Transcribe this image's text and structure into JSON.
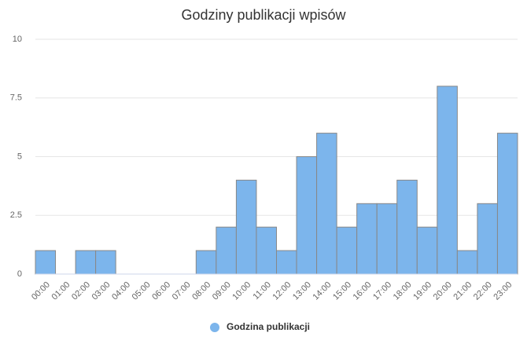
{
  "chart_data": {
    "type": "bar",
    "title": "Godziny publikacji wpisów",
    "categories": [
      "00:00",
      "01:00",
      "02:00",
      "03:00",
      "04:00",
      "05:00",
      "06:00",
      "07:00",
      "08:00",
      "09:00",
      "10:00",
      "11:00",
      "12:00",
      "13:00",
      "14:00",
      "15:00",
      "16:00",
      "17:00",
      "18:00",
      "19:00",
      "20:00",
      "21:00",
      "22:00",
      "23:00"
    ],
    "series": [
      {
        "name": "Godzina publikacji",
        "color": "#7cb5ec",
        "values": [
          1,
          0,
          1,
          1,
          0,
          0,
          0,
          0,
          1,
          2,
          4,
          2,
          1,
          5,
          6,
          2,
          3,
          3,
          4,
          2,
          8,
          1,
          3,
          6
        ]
      }
    ],
    "ylim": [
      0,
      10
    ],
    "yticks": [
      0,
      2.5,
      5,
      7.5,
      10
    ],
    "grid": true,
    "legend": "bottom"
  }
}
